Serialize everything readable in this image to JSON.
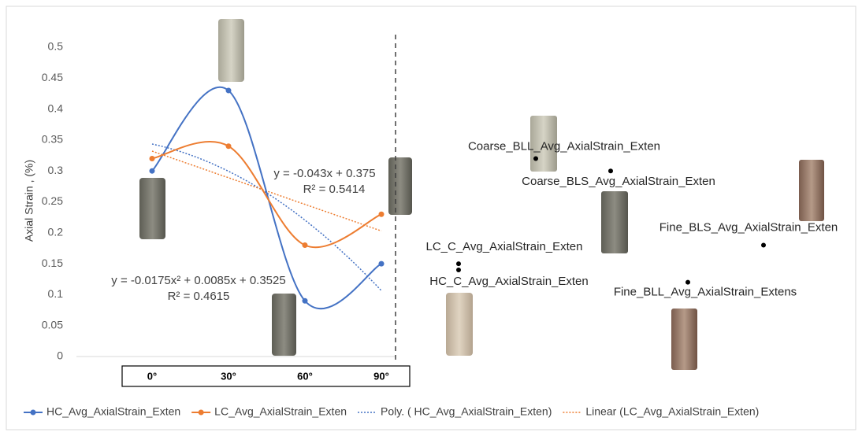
{
  "chart_data": {
    "type": "line",
    "y_label": "Axial Strain , (%)",
    "categories": [
      "0°",
      "30°",
      "60°",
      "90°"
    ],
    "series": [
      {
        "name": "HC_Avg_AxialStrain_Exten",
        "color": "#4472c4",
        "values": [
          0.3,
          0.43,
          0.09,
          0.15
        ]
      },
      {
        "name": "LC_Avg_AxialStrain_Exten",
        "color": "#ed7d31",
        "values": [
          0.32,
          0.34,
          0.18,
          0.23
        ]
      }
    ],
    "trendlines": [
      {
        "name": "Poly. ( HC_Avg_AxialStrain_Exten)",
        "order": 2,
        "color": "#4472c4",
        "equation": "y = -0.0175x² + 0.0085x + 0.3525",
        "r_squared": "R² = 0.4615"
      },
      {
        "name": "Linear (LC_Avg_AxialStrain_Exten)",
        "order": 1,
        "color": "#ed7d31",
        "equation": "y = -0.043x + 0.375",
        "r_squared": "R² = 0.5414"
      }
    ],
    "points": [
      {
        "label": "Coarse_BLL_Avg_AxialStrain_Exten",
        "value": 0.32
      },
      {
        "label": "Coarse_BLS_Avg_AxialStrain_Exten",
        "value": 0.3
      },
      {
        "label": "LC_C_Avg_AxialStrain_Exten",
        "value": 0.15
      },
      {
        "label": "HC_C_Avg_AxialStrain_Exten",
        "value": 0.14
      },
      {
        "label": "Fine_BLS_Avg_AxialStrain_Exten",
        "value": 0.18
      },
      {
        "label": "Fine_BLL_Avg_AxialStrain_Extens",
        "value": 0.12
      }
    ],
    "ylim": [
      0,
      0.5
    ],
    "yticks": [
      0,
      0.05,
      0.1,
      0.15,
      0.2,
      0.25,
      0.3,
      0.35,
      0.4,
      0.45,
      0.5
    ],
    "grid": false
  }
}
